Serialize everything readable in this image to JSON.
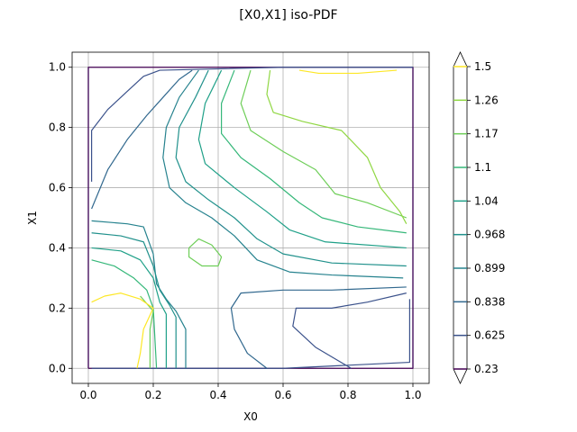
{
  "chart_data": {
    "type": "contour",
    "title": "[X0,X1] iso-PDF",
    "xlabel": "X0",
    "ylabel": "X1",
    "xlim": [
      -0.05,
      1.05
    ],
    "ylim": [
      -0.05,
      1.05
    ],
    "x_ticks": [
      0.0,
      0.2,
      0.4,
      0.6,
      0.8,
      1.0
    ],
    "y_ticks": [
      0.0,
      0.2,
      0.4,
      0.6,
      0.8,
      1.0
    ],
    "x_tick_labels": [
      "0.0",
      "0.2",
      "0.4",
      "0.6",
      "0.8",
      "1.0"
    ],
    "y_tick_labels": [
      "0.0",
      "0.2",
      "0.4",
      "0.6",
      "0.8",
      "1.0"
    ],
    "grid": true,
    "colorbar": {
      "levels": [
        0.23,
        0.625,
        0.838,
        0.899,
        0.968,
        1.04,
        1.1,
        1.17,
        1.26,
        1.5
      ],
      "labels": [
        "0.23",
        "0.625",
        "0.838",
        "0.899",
        "0.968",
        "1.04",
        "1.1",
        "1.17",
        "1.26",
        "1.5"
      ],
      "colors": [
        "#440154",
        "#3b528b",
        "#31688e",
        "#26828e",
        "#21918c",
        "#1fa088",
        "#35b779",
        "#6ece58",
        "#90d743",
        "#fde725"
      ]
    },
    "contours": [
      {
        "level": 0.23,
        "lines": [
          [
            [
              0.0,
              0.0
            ],
            [
              0.0,
              1.0
            ],
            [
              1.0,
              1.0
            ],
            [
              1.0,
              0.0
            ],
            [
              0.0,
              0.0
            ]
          ]
        ]
      },
      {
        "level": 0.625,
        "lines": [
          [
            [
              0.01,
              0.62
            ],
            [
              0.01,
              0.79
            ],
            [
              0.06,
              0.86
            ],
            [
              0.12,
              0.92
            ],
            [
              0.17,
              0.97
            ],
            [
              0.22,
              0.99
            ],
            [
              0.6,
              1.0
            ],
            [
              1.0,
              1.0
            ]
          ],
          [
            [
              0.99,
              0.23
            ],
            [
              0.99,
              0.02
            ],
            [
              0.6,
              0.0
            ],
            [
              0.01,
              0.0
            ]
          ],
          [
            [
              0.81,
              0.0
            ],
            [
              0.7,
              0.07
            ],
            [
              0.63,
              0.14
            ],
            [
              0.64,
              0.2
            ],
            [
              0.75,
              0.2
            ],
            [
              0.86,
              0.22
            ],
            [
              0.98,
              0.25
            ]
          ]
        ]
      },
      {
        "level": 0.838,
        "lines": [
          [
            [
              0.01,
              0.53
            ],
            [
              0.06,
              0.66
            ],
            [
              0.12,
              0.76
            ],
            [
              0.18,
              0.84
            ],
            [
              0.23,
              0.9
            ],
            [
              0.28,
              0.96
            ],
            [
              0.32,
              0.99
            ]
          ],
          [
            [
              0.55,
              0.0
            ],
            [
              0.49,
              0.05
            ],
            [
              0.45,
              0.13
            ],
            [
              0.44,
              0.2
            ],
            [
              0.47,
              0.25
            ],
            [
              0.6,
              0.26
            ],
            [
              0.75,
              0.26
            ],
            [
              0.98,
              0.27
            ]
          ]
        ]
      },
      {
        "level": 0.899,
        "lines": [
          [
            [
              0.01,
              0.49
            ],
            [
              0.12,
              0.48
            ],
            [
              0.17,
              0.47
            ],
            [
              0.2,
              0.38
            ],
            [
              0.21,
              0.28
            ],
            [
              0.24,
              0.23
            ],
            [
              0.27,
              0.19
            ],
            [
              0.3,
              0.13
            ],
            [
              0.3,
              0.0
            ]
          ],
          [
            [
              0.34,
              0.99
            ],
            [
              0.28,
              0.9
            ],
            [
              0.24,
              0.8
            ],
            [
              0.23,
              0.7
            ],
            [
              0.25,
              0.6
            ],
            [
              0.3,
              0.55
            ],
            [
              0.38,
              0.5
            ],
            [
              0.45,
              0.44
            ],
            [
              0.52,
              0.36
            ],
            [
              0.62,
              0.32
            ],
            [
              0.75,
              0.31
            ],
            [
              0.97,
              0.3
            ]
          ]
        ]
      },
      {
        "level": 0.968,
        "lines": [
          [
            [
              0.01,
              0.45
            ],
            [
              0.1,
              0.44
            ],
            [
              0.17,
              0.42
            ],
            [
              0.2,
              0.34
            ],
            [
              0.22,
              0.26
            ],
            [
              0.25,
              0.21
            ],
            [
              0.27,
              0.17
            ],
            [
              0.27,
              0.0
            ]
          ],
          [
            [
              0.37,
              0.99
            ],
            [
              0.33,
              0.9
            ],
            [
              0.28,
              0.8
            ],
            [
              0.27,
              0.7
            ],
            [
              0.3,
              0.62
            ],
            [
              0.37,
              0.56
            ],
            [
              0.45,
              0.5
            ],
            [
              0.52,
              0.43
            ],
            [
              0.6,
              0.38
            ],
            [
              0.75,
              0.35
            ],
            [
              0.98,
              0.34
            ]
          ]
        ]
      },
      {
        "level": 1.04,
        "lines": [
          [
            [
              0.01,
              0.4
            ],
            [
              0.1,
              0.39
            ],
            [
              0.16,
              0.36
            ],
            [
              0.2,
              0.3
            ],
            [
              0.22,
              0.22
            ],
            [
              0.24,
              0.18
            ],
            [
              0.24,
              0.0
            ]
          ],
          [
            [
              0.41,
              0.99
            ],
            [
              0.36,
              0.88
            ],
            [
              0.34,
              0.76
            ],
            [
              0.36,
              0.68
            ],
            [
              0.45,
              0.6
            ],
            [
              0.55,
              0.52
            ],
            [
              0.62,
              0.46
            ],
            [
              0.73,
              0.42
            ],
            [
              0.98,
              0.4
            ]
          ]
        ]
      },
      {
        "level": 1.1,
        "lines": [
          [
            [
              0.01,
              0.36
            ],
            [
              0.08,
              0.34
            ],
            [
              0.14,
              0.3
            ],
            [
              0.18,
              0.26
            ],
            [
              0.2,
              0.2
            ],
            [
              0.21,
              0.0
            ]
          ],
          [
            [
              0.45,
              0.99
            ],
            [
              0.41,
              0.88
            ],
            [
              0.41,
              0.78
            ],
            [
              0.47,
              0.7
            ],
            [
              0.56,
              0.63
            ],
            [
              0.65,
              0.55
            ],
            [
              0.72,
              0.5
            ],
            [
              0.83,
              0.47
            ],
            [
              0.98,
              0.45
            ]
          ]
        ]
      },
      {
        "level": 1.17,
        "lines": [
          [
            [
              0.5,
              0.99
            ],
            [
              0.47,
              0.88
            ],
            [
              0.5,
              0.79
            ],
            [
              0.6,
              0.72
            ],
            [
              0.7,
              0.66
            ],
            [
              0.76,
              0.58
            ],
            [
              0.86,
              0.55
            ],
            [
              0.98,
              0.5
            ]
          ],
          [
            [
              0.19,
              0.0
            ],
            [
              0.19,
              0.13
            ],
            [
              0.2,
              0.19
            ],
            [
              0.16,
              0.24
            ]
          ],
          [
            [
              0.31,
              0.4
            ],
            [
              0.34,
              0.43
            ],
            [
              0.38,
              0.41
            ],
            [
              0.41,
              0.37
            ],
            [
              0.4,
              0.34
            ],
            [
              0.35,
              0.34
            ],
            [
              0.31,
              0.37
            ],
            [
              0.31,
              0.4
            ]
          ]
        ]
      },
      {
        "level": 1.26,
        "lines": [
          [
            [
              0.56,
              0.99
            ],
            [
              0.55,
              0.91
            ],
            [
              0.57,
              0.85
            ],
            [
              0.66,
              0.82
            ],
            [
              0.78,
              0.79
            ],
            [
              0.86,
              0.7
            ],
            [
              0.9,
              0.6
            ],
            [
              0.96,
              0.52
            ],
            [
              0.98,
              0.48
            ]
          ]
        ]
      },
      {
        "level": 1.5,
        "lines": [
          [
            [
              0.01,
              0.22
            ],
            [
              0.05,
              0.24
            ],
            [
              0.1,
              0.25
            ],
            [
              0.16,
              0.23
            ],
            [
              0.2,
              0.2
            ],
            [
              0.17,
              0.13
            ],
            [
              0.16,
              0.05
            ],
            [
              0.15,
              0.0
            ]
          ],
          [
            [
              0.65,
              0.99
            ],
            [
              0.71,
              0.98
            ],
            [
              0.83,
              0.98
            ],
            [
              0.95,
              0.99
            ]
          ]
        ]
      }
    ],
    "extra_lines": [
      {
        "color": "#3b528b",
        "points": [
          [
            0.0,
            1.0
          ],
          [
            0.0,
            0.0
          ]
        ]
      },
      {
        "color": "#3b528b",
        "points": [
          [
            1.0,
            1.0
          ],
          [
            1.0,
            0.0
          ]
        ]
      }
    ]
  }
}
